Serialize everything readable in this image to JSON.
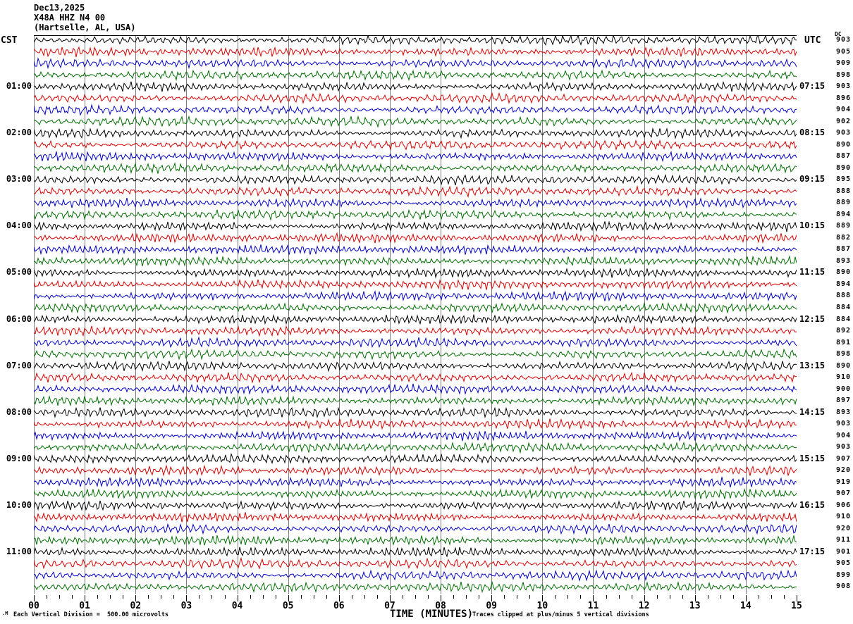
{
  "header": {
    "date": "Dec13,2025",
    "station": "X48A HHZ N4 00",
    "location": "(Hartselle, AL, USA)"
  },
  "axes": {
    "left_title": "CST",
    "right_title": "UTC",
    "dc_title": "DC",
    "x_title": "TIME (MINUTES)"
  },
  "footer": {
    "scale_note": "Each Vertical Division =  500.00 microvolts",
    "clip_note": "Traces clipped at plus/minus 5 vertical divisions",
    "corner_mark": ".M"
  },
  "colors": {
    "black": "#000000",
    "red": "#dd0000",
    "blue": "#0000cc",
    "green": "#006e00",
    "grid": "#7d7d7d",
    "border": "#000000"
  },
  "chart_data": {
    "type": "line",
    "subtype": "seismogram-helicorder",
    "title": "X48A HHZ N4 00 (Hartselle, AL, USA) Dec13,2025",
    "xlabel": "TIME (MINUTES)",
    "x_ticks": [
      "00",
      "01",
      "02",
      "03",
      "04",
      "05",
      "06",
      "07",
      "08",
      "09",
      "10",
      "11",
      "12",
      "13",
      "14",
      "15"
    ],
    "x_range_minutes": [
      0,
      15
    ],
    "minutes_per_row": 15,
    "rows_total": 48,
    "traces_per_hour": 4,
    "color_cycle": [
      "black",
      "red",
      "blue",
      "green"
    ],
    "left_time_zone": "CST",
    "right_time_zone": "UTC",
    "scale_note": "Each Vertical Division =  500.00 microvolts",
    "clip_note": "Traces clipped at plus/minus 5 vertical divisions",
    "rows": [
      {
        "color": "black",
        "cst": "",
        "utc": "",
        "dc": "903"
      },
      {
        "color": "red",
        "cst": "",
        "utc": "",
        "dc": "905"
      },
      {
        "color": "blue",
        "cst": "",
        "utc": "",
        "dc": "909"
      },
      {
        "color": "green",
        "cst": "",
        "utc": "",
        "dc": "898"
      },
      {
        "color": "black",
        "cst": "01:00",
        "utc": "07:15",
        "dc": "903"
      },
      {
        "color": "red",
        "cst": "",
        "utc": "",
        "dc": "896"
      },
      {
        "color": "blue",
        "cst": "",
        "utc": "",
        "dc": "904"
      },
      {
        "color": "green",
        "cst": "",
        "utc": "",
        "dc": "902"
      },
      {
        "color": "black",
        "cst": "02:00",
        "utc": "08:15",
        "dc": "903"
      },
      {
        "color": "red",
        "cst": "",
        "utc": "",
        "dc": "890"
      },
      {
        "color": "blue",
        "cst": "",
        "utc": "",
        "dc": "887"
      },
      {
        "color": "green",
        "cst": "",
        "utc": "",
        "dc": "890"
      },
      {
        "color": "black",
        "cst": "03:00",
        "utc": "09:15",
        "dc": "895"
      },
      {
        "color": "red",
        "cst": "",
        "utc": "",
        "dc": "888"
      },
      {
        "color": "blue",
        "cst": "",
        "utc": "",
        "dc": "889"
      },
      {
        "color": "green",
        "cst": "",
        "utc": "",
        "dc": "894"
      },
      {
        "color": "black",
        "cst": "04:00",
        "utc": "10:15",
        "dc": "889"
      },
      {
        "color": "red",
        "cst": "",
        "utc": "",
        "dc": "882"
      },
      {
        "color": "blue",
        "cst": "",
        "utc": "",
        "dc": "887"
      },
      {
        "color": "green",
        "cst": "",
        "utc": "",
        "dc": "893"
      },
      {
        "color": "black",
        "cst": "05:00",
        "utc": "11:15",
        "dc": "890"
      },
      {
        "color": "red",
        "cst": "",
        "utc": "",
        "dc": "894"
      },
      {
        "color": "blue",
        "cst": "",
        "utc": "",
        "dc": "888"
      },
      {
        "color": "green",
        "cst": "",
        "utc": "",
        "dc": "884"
      },
      {
        "color": "black",
        "cst": "06:00",
        "utc": "12:15",
        "dc": "884"
      },
      {
        "color": "red",
        "cst": "",
        "utc": "",
        "dc": "892"
      },
      {
        "color": "blue",
        "cst": "",
        "utc": "",
        "dc": "891"
      },
      {
        "color": "green",
        "cst": "",
        "utc": "",
        "dc": "898"
      },
      {
        "color": "black",
        "cst": "07:00",
        "utc": "13:15",
        "dc": "890"
      },
      {
        "color": "red",
        "cst": "",
        "utc": "",
        "dc": "910"
      },
      {
        "color": "blue",
        "cst": "",
        "utc": "",
        "dc": "900"
      },
      {
        "color": "green",
        "cst": "",
        "utc": "",
        "dc": "897"
      },
      {
        "color": "black",
        "cst": "08:00",
        "utc": "14:15",
        "dc": "893"
      },
      {
        "color": "red",
        "cst": "",
        "utc": "",
        "dc": "903"
      },
      {
        "color": "blue",
        "cst": "",
        "utc": "",
        "dc": "904"
      },
      {
        "color": "green",
        "cst": "",
        "utc": "",
        "dc": "903"
      },
      {
        "color": "black",
        "cst": "09:00",
        "utc": "15:15",
        "dc": "907"
      },
      {
        "color": "red",
        "cst": "",
        "utc": "",
        "dc": "920"
      },
      {
        "color": "blue",
        "cst": "",
        "utc": "",
        "dc": "919"
      },
      {
        "color": "green",
        "cst": "",
        "utc": "",
        "dc": "907"
      },
      {
        "color": "black",
        "cst": "10:00",
        "utc": "16:15",
        "dc": "906"
      },
      {
        "color": "red",
        "cst": "",
        "utc": "",
        "dc": "910"
      },
      {
        "color": "blue",
        "cst": "",
        "utc": "",
        "dc": "920"
      },
      {
        "color": "green",
        "cst": "",
        "utc": "",
        "dc": "911"
      },
      {
        "color": "black",
        "cst": "11:00",
        "utc": "17:15",
        "dc": "901"
      },
      {
        "color": "red",
        "cst": "",
        "utc": "",
        "dc": "905"
      },
      {
        "color": "blue",
        "cst": "",
        "utc": "",
        "dc": "899"
      },
      {
        "color": "green",
        "cst": "",
        "utc": "",
        "dc": "908"
      }
    ]
  }
}
